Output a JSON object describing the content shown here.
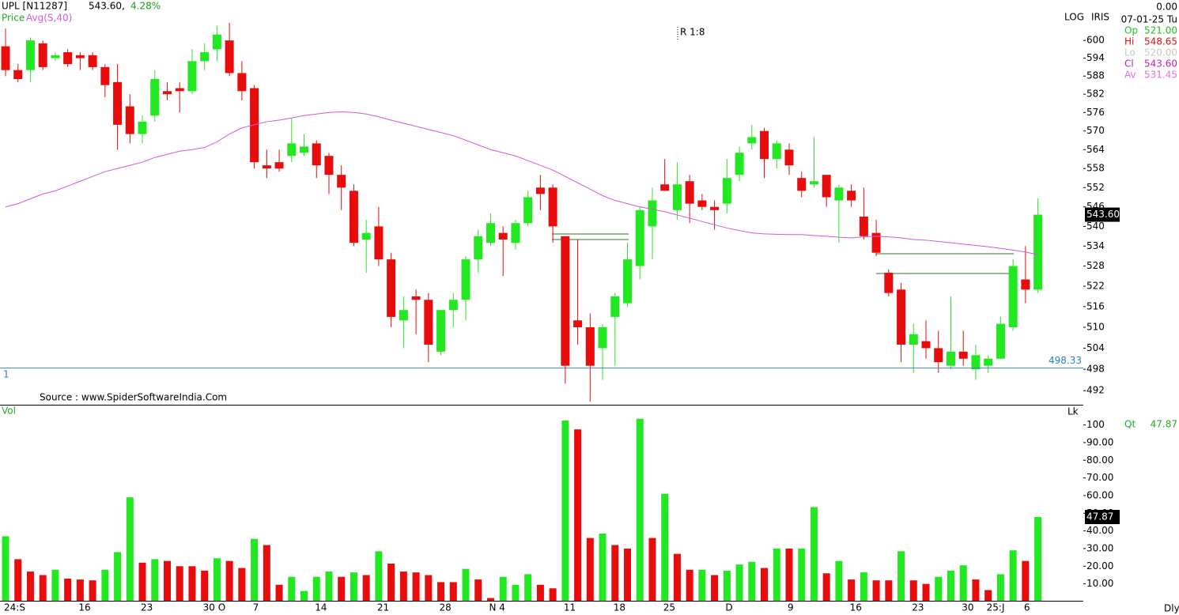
{
  "chart_data": [
    {
      "type": "candlestick",
      "title": "UPL [N11287]",
      "quote": "543.60,",
      "change": "4.28%",
      "price_label": "Price",
      "annotation": "R 1:8",
      "scale_label": "LOG",
      "feed_label": "IRIS",
      "source": "Source : www.SpiderSoftwareIndia.Com",
      "ref_index": "1",
      "ref_line": 498.33,
      "last_label": "543.60",
      "log_scale": true,
      "ylim": [
        488.1,
        613.9
      ],
      "yticks": [
        492,
        498,
        504,
        510,
        516,
        522,
        528,
        534,
        540,
        546,
        552,
        558,
        564,
        570,
        576,
        582,
        588,
        594,
        600
      ],
      "up_color": "#22e822",
      "down_color": "#e80c0c",
      "categories": [
        "24:S",
        null,
        null,
        null,
        null,
        null,
        "16",
        null,
        null,
        null,
        null,
        "23",
        null,
        null,
        null,
        null,
        "30 O",
        null,
        null,
        null,
        "7",
        null,
        null,
        null,
        null,
        "14",
        null,
        null,
        null,
        null,
        "21",
        null,
        null,
        null,
        null,
        "28",
        null,
        null,
        null,
        "N 4",
        null,
        null,
        null,
        null,
        null,
        "11",
        null,
        null,
        null,
        "18",
        null,
        null,
        null,
        "25",
        null,
        null,
        null,
        null,
        "D",
        null,
        null,
        null,
        null,
        "9",
        null,
        null,
        null,
        null,
        "16",
        null,
        null,
        null,
        null,
        "23",
        null,
        null,
        null,
        "30",
        null,
        "25:J",
        null,
        null,
        "6",
        null
      ],
      "open": [
        598,
        590,
        590,
        599,
        594,
        596,
        595,
        595,
        591,
        586,
        578,
        569,
        575,
        583,
        584,
        583,
        593,
        597,
        600,
        589,
        584,
        559,
        560,
        562,
        563,
        566,
        562,
        556,
        551,
        536,
        540,
        530,
        512,
        519,
        518,
        503,
        515,
        518,
        530,
        535,
        538,
        535,
        541,
        552,
        552,
        537,
        512,
        510,
        504,
        513,
        517,
        528,
        540,
        553,
        545,
        554,
        548,
        546,
        547,
        556,
        566,
        570,
        561,
        564,
        555,
        553,
        556,
        548,
        551,
        543,
        538,
        526,
        521,
        505,
        506,
        504,
        499,
        503,
        498,
        499,
        501,
        510,
        524,
        521
      ],
      "high": [
        604,
        592,
        601,
        600,
        596,
        597,
        596,
        596,
        592,
        592,
        582,
        575,
        590,
        586,
        586,
        597,
        599,
        605,
        606,
        593,
        585,
        564,
        564,
        574,
        569,
        567,
        563,
        559,
        553,
        542,
        546,
        532,
        519,
        521,
        520,
        515,
        520,
        531,
        539,
        544,
        540,
        542,
        551,
        556,
        553,
        537,
        536,
        514,
        511,
        520,
        535,
        546,
        552,
        561,
        560,
        556,
        550,
        548,
        561,
        565,
        572,
        571,
        567,
        566,
        557,
        568,
        556,
        553,
        553,
        552,
        542,
        527,
        523,
        511,
        512,
        509,
        519,
        509,
        505,
        502,
        513,
        530,
        534,
        548.65
      ],
      "low": [
        588,
        586,
        586,
        590,
        593,
        591,
        590,
        590,
        581,
        564,
        566,
        566,
        573,
        580,
        576,
        582,
        590,
        593,
        588,
        580,
        558,
        555,
        557,
        560,
        562,
        555,
        550,
        545,
        534,
        526,
        528,
        510,
        504,
        508,
        500,
        502,
        510,
        512,
        526,
        534,
        525,
        533,
        540,
        545,
        535,
        494,
        505,
        489,
        495,
        499,
        516,
        524,
        530,
        551,
        542,
        541,
        545,
        539,
        544,
        554,
        564,
        555,
        558,
        556,
        549,
        552,
        546,
        535,
        546,
        536,
        531,
        519,
        500,
        497,
        501,
        497,
        498,
        499,
        495,
        497,
        501,
        509,
        517,
        520
      ],
      "close": [
        590,
        587,
        600,
        591,
        595,
        592,
        594,
        591,
        585,
        572,
        569,
        573,
        587,
        582,
        583,
        593,
        596,
        602,
        589,
        583,
        560,
        558,
        558,
        566,
        565,
        559,
        556,
        552,
        535,
        538,
        530,
        513,
        515,
        518,
        505,
        515,
        518,
        530,
        537,
        541,
        536,
        541,
        549,
        550,
        540,
        499,
        510,
        499,
        510,
        519,
        530,
        545,
        548,
        551,
        553,
        547,
        546,
        545,
        555,
        563,
        568,
        561,
        566,
        559,
        551,
        554,
        549,
        552,
        548,
        537,
        532,
        520,
        505,
        508,
        504,
        500,
        503,
        501,
        502,
        501,
        511,
        528,
        521,
        543.6
      ],
      "series": [
        {
          "name": "Avg(S,40)",
          "color": "#d459d4",
          "values": [
            546,
            547,
            548.5,
            550,
            551,
            552.5,
            554,
            555.5,
            557,
            558,
            559,
            560,
            561.5,
            562.5,
            563.5,
            564,
            564.7,
            566.5,
            569,
            571,
            572,
            573,
            573.5,
            574.2,
            575,
            575.5,
            576,
            576.2,
            576,
            575.5,
            574.6,
            573.5,
            572.5,
            571.5,
            570.5,
            569.5,
            568.5,
            567,
            565.5,
            564,
            563,
            562,
            560.5,
            559,
            557.5,
            555.5,
            553.5,
            551.5,
            549.5,
            548,
            547,
            546,
            545.3,
            544.5,
            543.5,
            542.5,
            541.5,
            540.5,
            539.5,
            538.7,
            538,
            537.7,
            537.6,
            537.5,
            537.5,
            537.2,
            537,
            536.7,
            536.5,
            536.8,
            537,
            536.8,
            536.5,
            536,
            535.8,
            535.4,
            535,
            534.6,
            534.2,
            533.8,
            533.3,
            532.8,
            532.2,
            531.45
          ]
        }
      ],
      "info": {
        "value": "0.00",
        "date": "07-01-25 Tu",
        "items": [
          {
            "name": "Op",
            "value": "521.00",
            "color": "#22c022"
          },
          {
            "name": "Hi",
            "value": "548.65",
            "color": "#e01010"
          },
          {
            "name": "Lo",
            "value": "520.00",
            "color": "#c8c8c8"
          },
          {
            "name": "Cl",
            "value": "543.60",
            "color": "#c020c0"
          },
          {
            "name": "Av",
            "value": "531.45",
            "color": "#e070e0"
          }
        ]
      }
    },
    {
      "type": "volume",
      "title": "Vol",
      "unit_label": "Lk",
      "qty_label": "Qt",
      "period": "Dly",
      "ylim": [
        0,
        111
      ],
      "yticks": [
        {
          "value": 10,
          "label": "10.00"
        },
        {
          "value": 20,
          "label": "20.00"
        },
        {
          "value": 30,
          "label": "30.00"
        },
        {
          "value": 40,
          "label": "40.00"
        },
        {
          "value": 50,
          "label": "50.00"
        },
        {
          "value": 60,
          "label": "60.00"
        },
        {
          "value": 70,
          "label": "70.00"
        },
        {
          "value": 80,
          "label": "80.00"
        },
        {
          "value": 90,
          "label": "90.00"
        },
        100
      ],
      "values": [
        37,
        24,
        17,
        15,
        18,
        13,
        12.5,
        12,
        18,
        28,
        59,
        22,
        24,
        23,
        20,
        20,
        17.5,
        24.5,
        23,
        19,
        35.5,
        32,
        9.5,
        14,
        6,
        14,
        17,
        14,
        16.5,
        15,
        28.5,
        21.5,
        17,
        16.5,
        15,
        11,
        11,
        18.5,
        12.5,
        2,
        14,
        9.5,
        15.5,
        9.5,
        7.5,
        102.5,
        97.5,
        36,
        38.5,
        32,
        30,
        103.5,
        36,
        61,
        27,
        18,
        18,
        15,
        17.5,
        21,
        22.5,
        19,
        30,
        30,
        30,
        53.5,
        16,
        23,
        12.5,
        16.5,
        12,
        12,
        28.5,
        12,
        10,
        14,
        17.5,
        20.5,
        12.5,
        6.5,
        15.5,
        29,
        23,
        47.87
      ],
      "up": [
        true,
        false,
        false,
        false,
        true,
        false,
        false,
        false,
        true,
        true,
        true,
        false,
        true,
        false,
        false,
        false,
        false,
        true,
        false,
        false,
        true,
        false,
        false,
        true,
        true,
        true,
        true,
        false,
        true,
        false,
        true,
        false,
        false,
        false,
        false,
        false,
        false,
        true,
        false,
        false,
        true,
        true,
        true,
        false,
        false,
        true,
        false,
        false,
        true,
        false,
        false,
        true,
        false,
        true,
        false,
        false,
        true,
        false,
        true,
        true,
        true,
        false,
        true,
        false,
        true,
        true,
        false,
        true,
        false,
        true,
        false,
        false,
        true,
        false,
        false,
        true,
        true,
        true,
        false,
        false,
        true,
        true,
        false,
        true
      ]
    }
  ]
}
